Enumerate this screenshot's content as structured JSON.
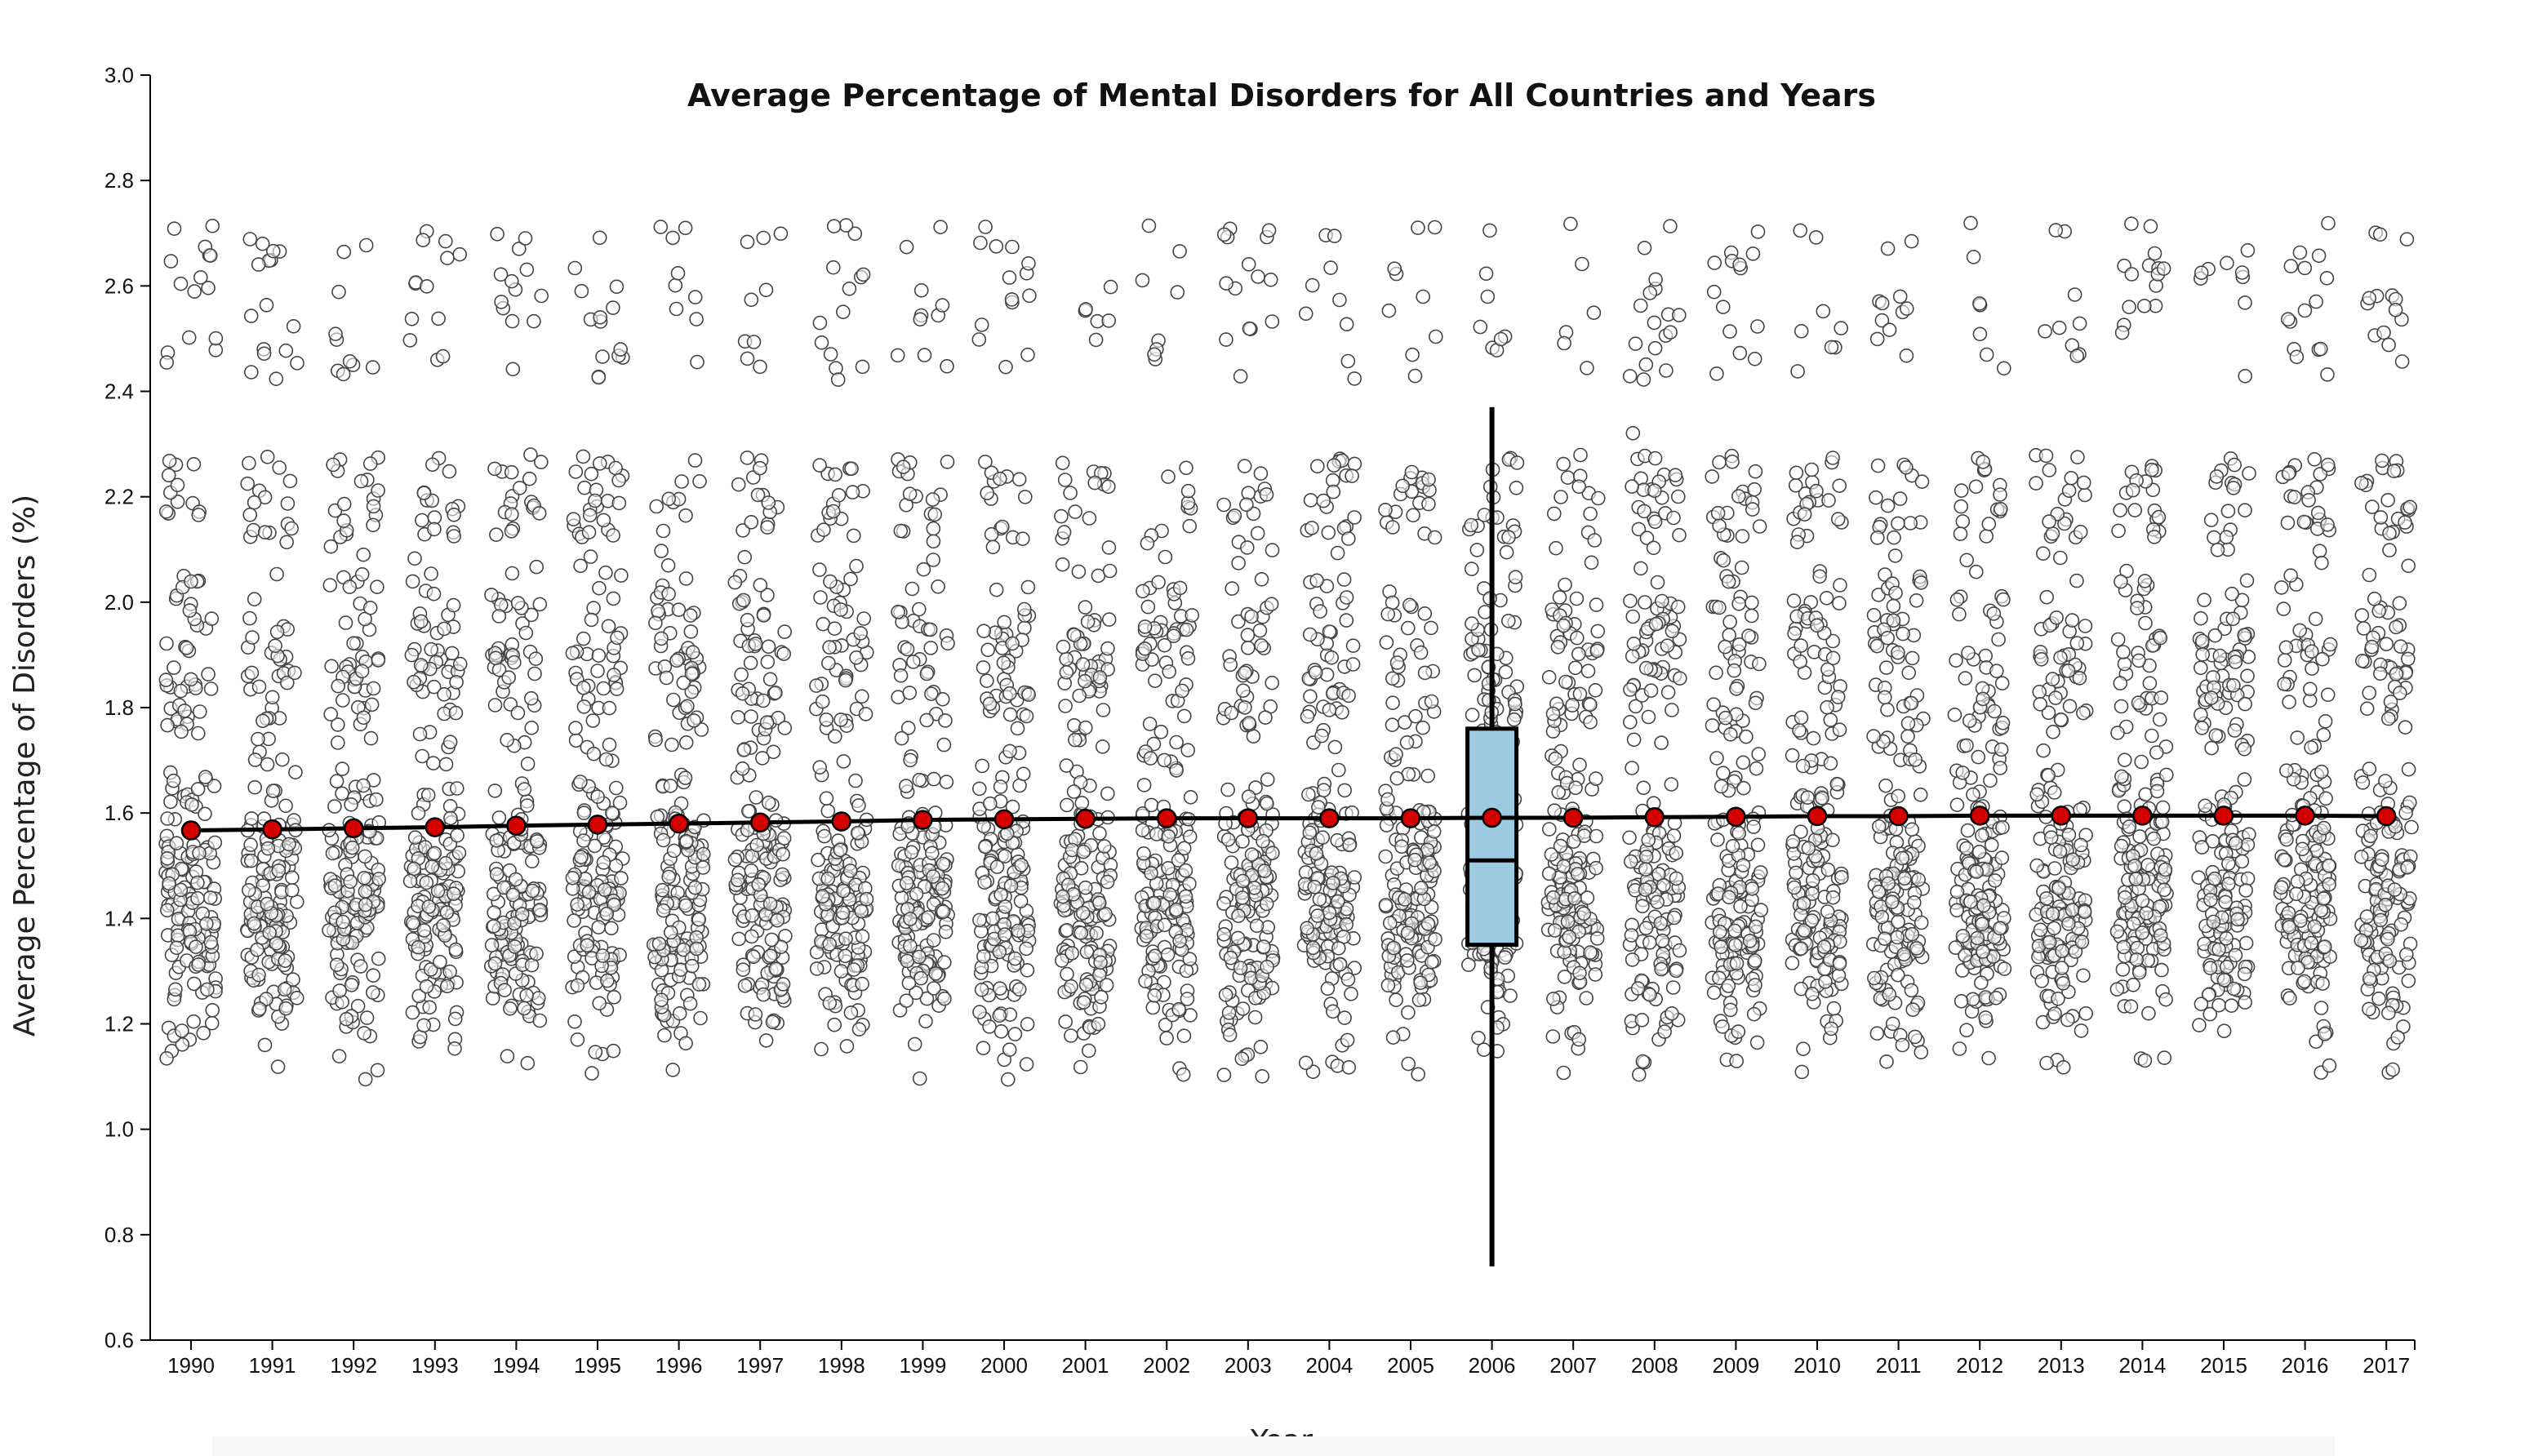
{
  "chart_data": {
    "type": "scatter",
    "title": "Average Percentage of Mental Disorders for All Countries and Years",
    "xlabel": "Year",
    "ylabel": "Average Percentage of Disorders (%)",
    "ylim": [
      0.6,
      3.0
    ],
    "yticks": [
      "0.6",
      "0.8",
      "1.0",
      "1.2",
      "1.4",
      "1.6",
      "1.8",
      "2.0",
      "2.2",
      "2.4",
      "2.6",
      "2.8",
      "3.0"
    ],
    "categories": [
      "1990",
      "1991",
      "1992",
      "1993",
      "1994",
      "1995",
      "1996",
      "1997",
      "1998",
      "1999",
      "2000",
      "2001",
      "2002",
      "2003",
      "2004",
      "2005",
      "2006",
      "2007",
      "2008",
      "2009",
      "2010",
      "2011",
      "2012",
      "2013",
      "2014",
      "2015",
      "2016",
      "2017"
    ],
    "series": [
      {
        "values": [
          1.567,
          1.569,
          1.571,
          1.573,
          1.576,
          1.578,
          1.58,
          1.582,
          1.584,
          1.587,
          1.588,
          1.589,
          1.59,
          1.59,
          1.59,
          1.59,
          1.591,
          1.591,
          1.592,
          1.593,
          1.594,
          1.594,
          1.595,
          1.595,
          1.595,
          1.595,
          1.595,
          1.594
        ]
      }
    ],
    "highlight_box": {
      "category": "2006",
      "whisker_low": 0.74,
      "q1": 1.35,
      "median": 1.51,
      "q3": 1.76,
      "whisker_high": 2.37
    },
    "jitter_range": [
      1.09,
      2.72
    ],
    "grid": false,
    "legend": "none",
    "colors": {
      "mean_dot": "#d40000",
      "box_fill": "#9ecae1",
      "point_stroke": "#444444"
    }
  }
}
